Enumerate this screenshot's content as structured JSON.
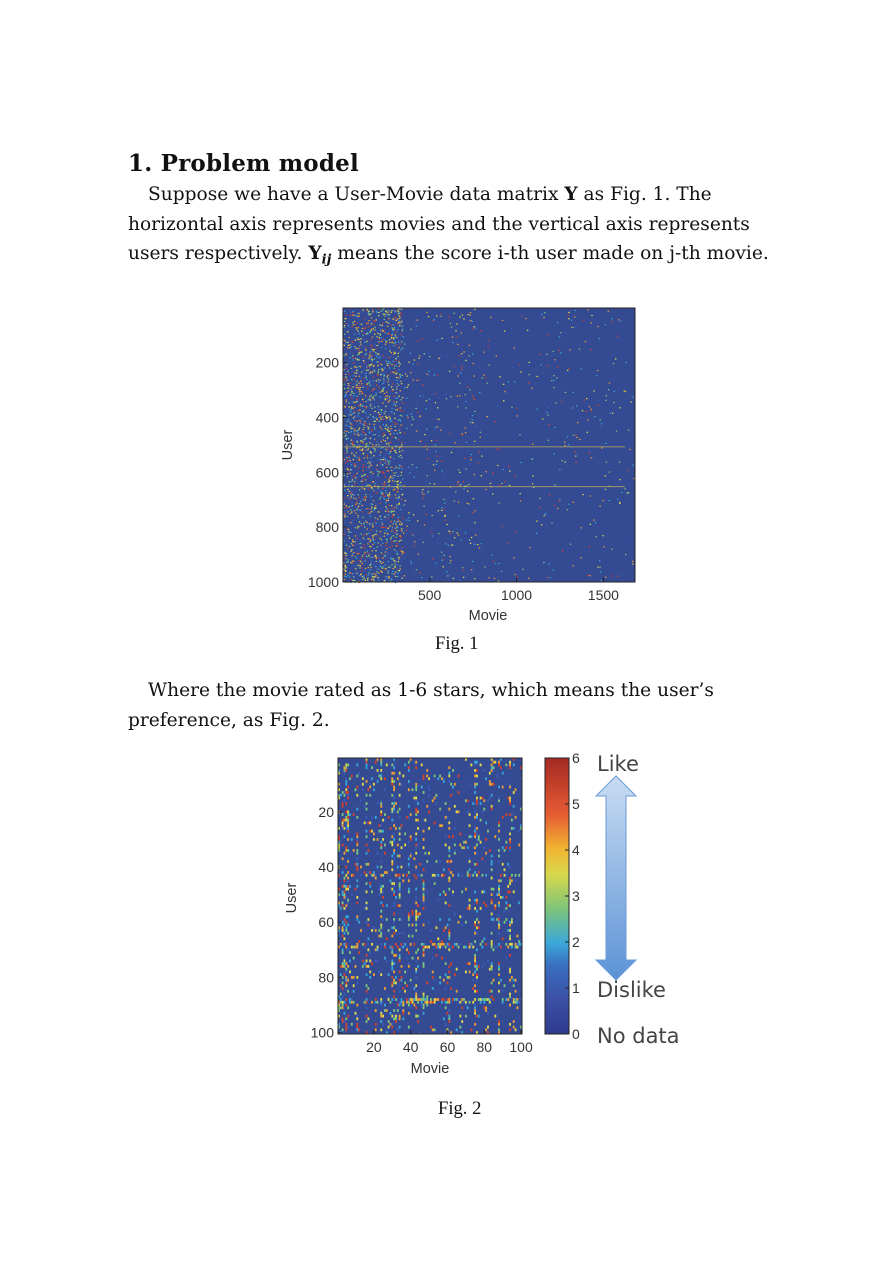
{
  "section": {
    "title": "1. Problem model"
  },
  "paragraph1": {
    "part1": "Suppose we have a User-Movie data matrix ",
    "sym_y": "Y",
    "part2": " as Fig. 1. The horizontal axis represents movies and the vertical axis represents users respectively. ",
    "sym_yij_base": "Y",
    "sym_yij_sub": "ij",
    "part3": " means the score i-th user made on j-th movie."
  },
  "figure1": {
    "caption": "Fig. 1"
  },
  "paragraph2": {
    "text": "Where the movie rated as 1-6 stars, which means the user’s preference, as Fig. 2."
  },
  "figure2": {
    "caption": "Fig. 2",
    "annot_like": "Like",
    "annot_dislike": "Dislike",
    "annot_nodata": "No data",
    "arrow_color": "#6ea0d8"
  },
  "chart_data": [
    {
      "type": "heatmap",
      "title": "",
      "xlabel": "Movie",
      "ylabel": "User",
      "xlim": [
        1,
        1682
      ],
      "ylim": [
        1,
        1000
      ],
      "xticks": [
        500,
        1000,
        1500
      ],
      "yticks": [
        200,
        400,
        600,
        800,
        1000
      ],
      "background_color": "#344a93",
      "grid": false
    },
    {
      "type": "heatmap",
      "title": "",
      "xlabel": "Movie",
      "ylabel": "User",
      "xlim": [
        1,
        100
      ],
      "ylim": [
        1,
        100
      ],
      "xticks": [
        20,
        40,
        60,
        80,
        100
      ],
      "yticks": [
        20,
        40,
        60,
        80,
        100
      ],
      "colorbar": {
        "min": 0,
        "max": 6,
        "ticks": [
          0,
          1,
          2,
          3,
          4,
          5,
          6
        ]
      },
      "background_color": "#344a93",
      "grid": false
    }
  ]
}
